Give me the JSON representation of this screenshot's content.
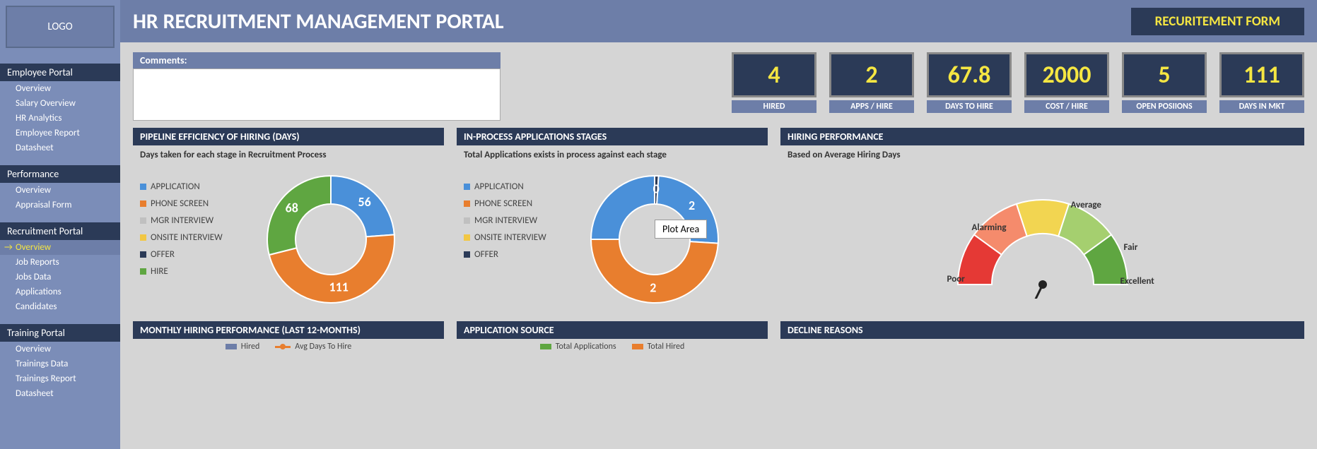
{
  "logo": "LOGO",
  "title": "HR RECRUITMENT MANAGEMENT PORTAL",
  "form_button": "RECURITEMENT FORM",
  "sidebar": {
    "sections": [
      {
        "header": "Employee Portal",
        "items": [
          "Overview",
          "Salary Overview",
          "HR Analytics",
          "Employee Report",
          "Datasheet"
        ]
      },
      {
        "header": "Performance",
        "items": [
          "Overview",
          "Appraisal Form"
        ]
      },
      {
        "header": "Recruitment Portal",
        "items": [
          "Overview",
          "Job Reports",
          "Jobs Data",
          "Applications",
          "Candidates"
        ],
        "active": 0
      },
      {
        "header": "Training Portal",
        "items": [
          "Overview",
          "Trainings Data",
          "Trainings Report",
          "Datasheet"
        ]
      }
    ]
  },
  "comments_label": "Comments:",
  "kpis": [
    {
      "value": "4",
      "label": "HIRED"
    },
    {
      "value": "2",
      "label": "APPS / HIRE"
    },
    {
      "value": "67.8",
      "label": "DAYS TO HIRE"
    },
    {
      "value": "2000",
      "label": "COST / HIRE"
    },
    {
      "value": "5",
      "label": "OPEN POSIIONS"
    },
    {
      "value": "111",
      "label": "DAYS IN MKT"
    }
  ],
  "pipeline": {
    "title": "PIPELINE EFFICIENCY OF HIRING (DAYS)",
    "subtitle": "Days taken for each stage in Recruitment Process",
    "legend": [
      {
        "label": "APPLICATION",
        "color": "#4a90d9"
      },
      {
        "label": "PHONE SCREEN",
        "color": "#e87e2e"
      },
      {
        "label": "MGR INTERVIEW",
        "color": "#c0c0c0"
      },
      {
        "label": "ONSITE INTERVIEW",
        "color": "#f2c744"
      },
      {
        "label": "OFFER",
        "color": "#2b3a57"
      },
      {
        "label": "HIRE",
        "color": "#5fa641"
      }
    ],
    "slices": [
      {
        "value": 56,
        "color": "#4a90d9",
        "label": "56"
      },
      {
        "value": 111,
        "color": "#e87e2e",
        "label": "111"
      },
      {
        "value": 68,
        "color": "#5fa641",
        "label": "68"
      }
    ]
  },
  "inprocess": {
    "title": "IN-PROCESS APPLICATIONS STAGES",
    "subtitle": "Total Applications exists in process against each stage",
    "legend": [
      {
        "label": "APPLICATION",
        "color": "#4a90d9"
      },
      {
        "label": "PHONE SCREEN",
        "color": "#e87e2e"
      },
      {
        "label": "MGR INTERVIEW",
        "color": "#c0c0c0"
      },
      {
        "label": "ONSITE INTERVIEW",
        "color": "#f2c744"
      },
      {
        "label": "OFFER",
        "color": "#2b3a57"
      }
    ],
    "slices": [
      {
        "value": 1,
        "color": "#2b3a57",
        "label": "0"
      },
      {
        "value": 25,
        "color": "#4a90d9",
        "label": "2"
      },
      {
        "value": 49,
        "color": "#e87e2e",
        "label": "2"
      },
      {
        "value": 25,
        "color": "#4a90d9",
        "label": ""
      }
    ],
    "plot_area_text": "Plot Area"
  },
  "hiring_perf": {
    "title": "HIRING PERFORMANCE",
    "subtitle": "Based on Average Hiring Days",
    "segments": [
      {
        "color": "#e53935",
        "label": "Poor"
      },
      {
        "color": "#f58b6c",
        "label": "Alarming"
      },
      {
        "color": "#f2d551",
        "label": "Average"
      },
      {
        "color": "#a5cf6f",
        "label": "Fair"
      },
      {
        "color": "#5fa641",
        "label": "Excellent"
      }
    ],
    "needle_angle": -64
  },
  "monthly": {
    "title": "MONTHLY HIRING PERFORMANCE (LAST 12-MONTHS)",
    "legend": [
      {
        "label": "Hired",
        "color": "#6d7ea8",
        "kind": "bar"
      },
      {
        "label": "Avg Days To Hire",
        "color": "#e87e2e",
        "kind": "line"
      }
    ]
  },
  "app_source": {
    "title": "APPLICATION SOURCE",
    "legend": [
      {
        "label": "Total Applications",
        "color": "#5fa641"
      },
      {
        "label": "Total Hired",
        "color": "#e87e2e"
      }
    ]
  },
  "decline": {
    "title": "DECLINE REASONS"
  }
}
